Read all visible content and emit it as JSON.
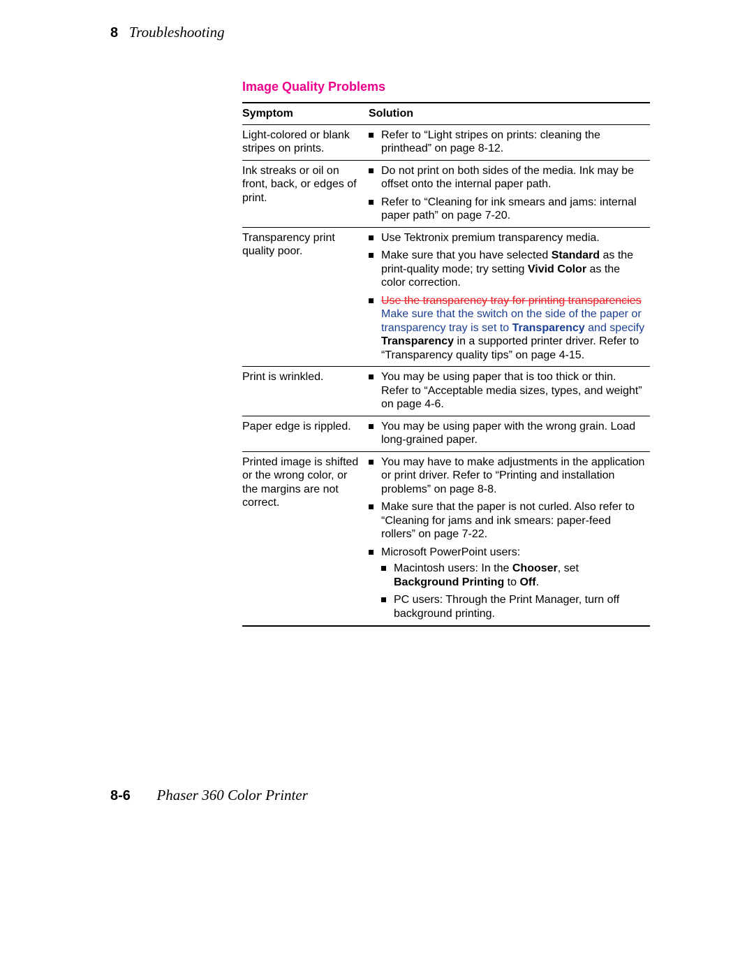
{
  "header": {
    "chapter_number": "8",
    "chapter_title": "Troubleshooting"
  },
  "section_title": "Image Quality Problems",
  "table": {
    "headers": {
      "symptom": "Symptom",
      "solution": "Solution"
    },
    "rows": {
      "r1": {
        "symptom": "Light-colored or blank stripes on prints.",
        "b1": "Refer to  “Light stripes on prints: cleaning the printhead” on page 8-12."
      },
      "r2": {
        "symptom": "Ink streaks or oil on front, back, or edges of print.",
        "b1": "Do not print on both sides of the media.  Ink may be offset onto the internal paper path.",
        "b2": "Refer to “Cleaning for ink smears and jams: internal paper path” on page 7-20."
      },
      "r3": {
        "symptom": "Transparency print quality poor.",
        "b1": "Use Tektronix premium transparency media.",
        "b2_pre": "Make sure that you have selected ",
        "b2_bold1": "Standard",
        "b2_mid": " as the print-quality mode; try setting ",
        "b2_bold2": "Vivid Color",
        "b2_post": " as the color correction.",
        "b3_strike": "Use the transparency tray for printing transparencies",
        "b3_blue1": " Make sure that the switch on the side of the paper or transparency tray is set to ",
        "b3_blue_bold": "Transparency",
        "b3_blue2": " and specify ",
        "b3_bold2": "Transparency",
        "b3_tail": " in a supported printer driver.  Refer to “Transparency quality tips” on page 4-15."
      },
      "r4": {
        "symptom": "Print is wrinkled.",
        "b1": "You may be using paper that is too thick or thin.  Refer to “Acceptable media sizes, types, and weight” on page 4-6."
      },
      "r5": {
        "symptom": "Paper edge is rippled.",
        "b1": "You may be using paper with the wrong grain.  Load long-grained paper."
      },
      "r6": {
        "symptom": "Printed image is shifted or the wrong color, or the margins are not correct.",
        "b1": "You may have to make adjustments in the application or print driver.  Refer to “Printing and installation problems” on page 8-8.",
        "b2": "Make sure that the paper is not curled.  Also refer to “Cleaning for jams and ink smears: paper-feed rollers” on page 7-22.",
        "b3": "Microsoft PowerPoint users:",
        "s1_pre": "Macintosh users:  In the ",
        "s1_b1": "Chooser",
        "s1_mid": ", set ",
        "s1_b2": "Background Printing",
        "s1_mid2": " to ",
        "s1_b3": "Off",
        "s1_post": ".",
        "s2": "PC users:  Through the Print Manager, turn off background printing."
      }
    }
  },
  "footer": {
    "page_number": "8-6",
    "product": "Phaser 360 Color Printer"
  }
}
